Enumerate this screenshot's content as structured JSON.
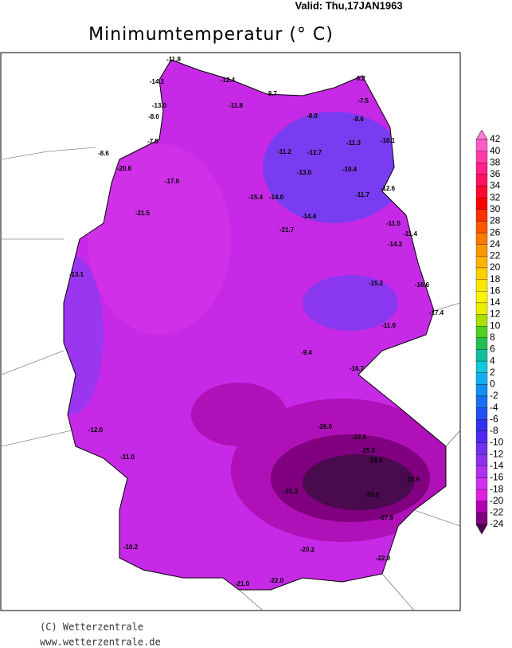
{
  "header": {
    "valid": "Valid: Thu,17JAN1963",
    "title": "Minimumtemperatur (° C)"
  },
  "legend": {
    "ticks": [
      42,
      40,
      38,
      36,
      34,
      32,
      30,
      28,
      26,
      24,
      22,
      20,
      18,
      16,
      14,
      12,
      10,
      8,
      6,
      4,
      2,
      0,
      -2,
      -4,
      -6,
      -8,
      -10,
      -12,
      -14,
      -16,
      -18,
      -20,
      -22,
      -24
    ],
    "colors": [
      "#ff78d8",
      "#ff5ac8",
      "#ff3ca8",
      "#ff2088",
      "#ff1060",
      "#ff0830",
      "#ff0000",
      "#ff3000",
      "#ff5800",
      "#ff7800",
      "#ff9800",
      "#ffb400",
      "#ffd000",
      "#ffe600",
      "#fff400",
      "#e8f000",
      "#a8e000",
      "#50d020",
      "#20c050",
      "#10c0a0",
      "#10c8d8",
      "#10b0f0",
      "#1090f0",
      "#1870f0",
      "#2050f0",
      "#3030f0",
      "#5028f0",
      "#7030f0",
      "#9030f0",
      "#b030f0",
      "#d030f0",
      "#e020e0",
      "#b000b0",
      "#800080",
      "#500050"
    ]
  },
  "stations": [
    "-11.8",
    "-14.2",
    "-12.4",
    "-8.7",
    "-6.2",
    "-7.5",
    "-13.0",
    "-8.0",
    "-11.8",
    "-8.0",
    "-8.6",
    "-8.6",
    "-7.5",
    "-11.2",
    "-12.7",
    "-11.3",
    "-10.1",
    "-20.6",
    "-17.0",
    "-13.0",
    "-10.4",
    "-12.6",
    "-15.4",
    "-14.0",
    "-11.7",
    "-21.5",
    "-14.4",
    "-21.7",
    "-11.5",
    "-11.4",
    "-14.2",
    "-13.1",
    "-15.2",
    "-16.6",
    "-17.4",
    "-11.0",
    "-9.4",
    "-16.7",
    "-26.0",
    "-22.6",
    "-25.9",
    "-19.4",
    "-19.6",
    "-31.3",
    "-33.5",
    "-27.6",
    "-20.2",
    "-22.9",
    "-21.0",
    "-22.0",
    "-12.0",
    "-11.0",
    "-10.2"
  ],
  "footer": {
    "copyright": "(C) Wetterzentrale",
    "url": "www.wetterzentrale.de"
  }
}
